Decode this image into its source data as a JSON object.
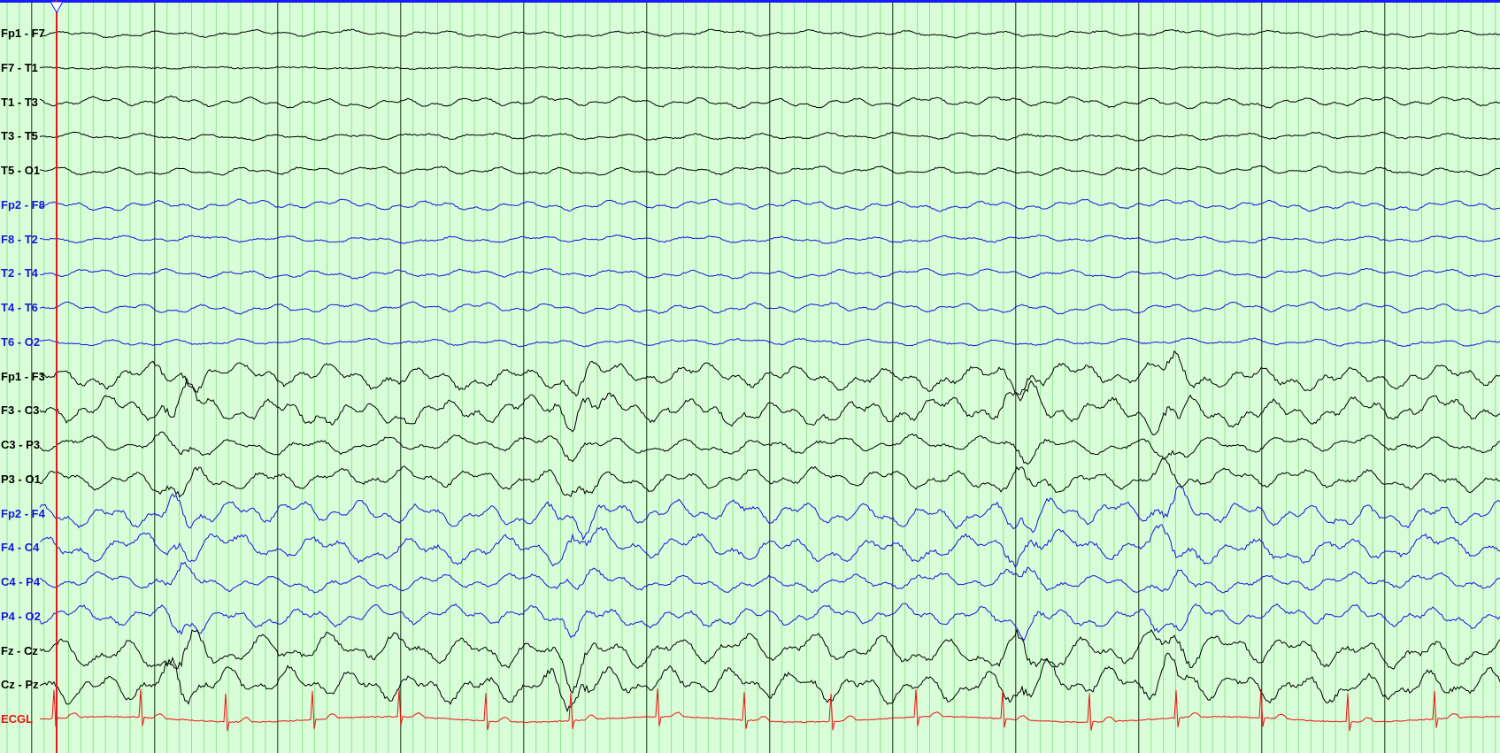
{
  "recording": {
    "background_color": "#d9fcd9",
    "top_bar_color": "#1a1aff",
    "cursor_color": "#e01818",
    "grid_minor_color": "#8ee58e",
    "grid_major_color": "#0f3a0f"
  },
  "channels": [
    {
      "label": "Fp1 - F7",
      "color": "#000000"
    },
    {
      "label": "F7 - T1",
      "color": "#000000"
    },
    {
      "label": "T1 - T3",
      "color": "#000000"
    },
    {
      "label": "T3 - T5",
      "color": "#000000"
    },
    {
      "label": "T5 - O1",
      "color": "#000000"
    },
    {
      "label": "Fp2 - F8",
      "color": "#1515e0"
    },
    {
      "label": "F8 - T2",
      "color": "#1515e0"
    },
    {
      "label": "T2 - T4",
      "color": "#1515e0"
    },
    {
      "label": "T4 - T6",
      "color": "#1515e0"
    },
    {
      "label": "T6 - O2",
      "color": "#1515e0"
    },
    {
      "label": "Fp1 - F3",
      "color": "#000000"
    },
    {
      "label": "F3 - C3",
      "color": "#000000"
    },
    {
      "label": "C3 - P3",
      "color": "#000000"
    },
    {
      "label": "P3 - O1",
      "color": "#000000"
    },
    {
      "label": "Fp2 - F4",
      "color": "#1515e0"
    },
    {
      "label": "F4 - C4",
      "color": "#1515e0"
    },
    {
      "label": "C4 - P4",
      "color": "#1515e0"
    },
    {
      "label": "P4 - O2",
      "color": "#1515e0"
    },
    {
      "label": "Fz - Cz",
      "color": "#000000"
    },
    {
      "label": "Cz - Pz",
      "color": "#000000"
    },
    {
      "label": "ECGL",
      "color": "#ee1111"
    }
  ]
}
